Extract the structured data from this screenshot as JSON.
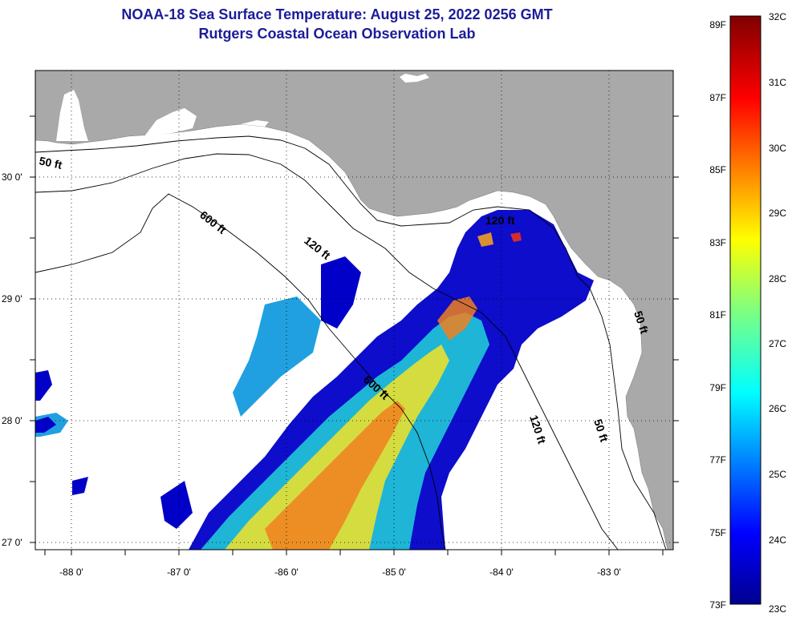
{
  "title": {
    "line1": "NOAA-18 Sea Surface Temperature:  August 25, 2022 0256 GMT",
    "line2": "Rutgers Coastal Ocean Observation Lab"
  },
  "axes": {
    "longitude_ticks": [
      "-88 0'",
      "-87 0'",
      "-86 0'",
      "-85 0'",
      "-84 0'",
      "-83 0'"
    ],
    "latitude_ticks": [
      "30 0'",
      "29 0'",
      "28 0'",
      "27 0'"
    ]
  },
  "contours": {
    "labels": [
      "50 ft",
      "600 ft",
      "120 ft",
      "600 ft",
      "120 ft",
      "50 ft",
      "50 ft",
      "120 ft"
    ]
  },
  "colorbar": {
    "fahrenheit_labels": [
      "89F",
      "87F",
      "85F",
      "83F",
      "81F",
      "79F",
      "77F",
      "75F",
      "73F"
    ],
    "celsius_labels": [
      "32C",
      "31C",
      "30C",
      "29C",
      "28C",
      "27C",
      "26C",
      "25C",
      "24C",
      "23C"
    ]
  },
  "colors": {
    "land": "#a9a9a9",
    "water_nodata": "#ffffff",
    "title": "#1c1c9a"
  }
}
